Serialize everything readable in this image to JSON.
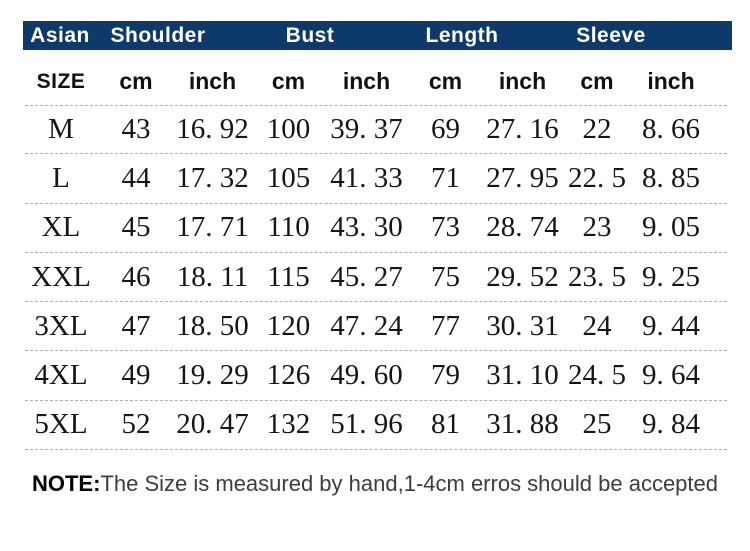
{
  "header": {
    "groups": [
      {
        "label": "Asian"
      },
      {
        "label": "Shoulder"
      },
      {
        "label": "Bust"
      },
      {
        "label": "Length"
      },
      {
        "label": "Sleeve"
      }
    ],
    "size_label": "SIZE",
    "subheaders": [
      "cm",
      "inch",
      "cm",
      "inch",
      "cm",
      "inch",
      "cm",
      "inch"
    ]
  },
  "chart_data": {
    "type": "table",
    "title": "Asian size chart",
    "columns": [
      "SIZE",
      "Shoulder cm",
      "Shoulder inch",
      "Bust cm",
      "Bust inch",
      "Length cm",
      "Length inch",
      "Sleeve cm",
      "Sleeve inch"
    ],
    "rows": [
      [
        "M",
        "43",
        "16. 92",
        "100",
        "39. 37",
        "69",
        "27. 16",
        "22",
        "8. 66"
      ],
      [
        "L",
        "44",
        "17. 32",
        "105",
        "41. 33",
        "71",
        "27. 95",
        "22. 5",
        "8. 85"
      ],
      [
        "XL",
        "45",
        "17. 71",
        "110",
        "43. 30",
        "73",
        "28. 74",
        "23",
        "9. 05"
      ],
      [
        "XXL",
        "46",
        "18. 11",
        "115",
        "45. 27",
        "75",
        "29. 52",
        "23. 5",
        "9. 25"
      ],
      [
        "3XL",
        "47",
        "18. 50",
        "120",
        "47. 24",
        "77",
        "30. 31",
        "24",
        "9. 44"
      ],
      [
        "4XL",
        "49",
        "19. 29",
        "126",
        "49. 60",
        "79",
        "31. 10",
        "24. 5",
        "9. 64"
      ],
      [
        "5XL",
        "52",
        "20. 47",
        "132",
        "51. 96",
        "81",
        "31. 88",
        "25",
        "9. 84"
      ]
    ]
  },
  "note": {
    "prefix": "NOTE:",
    "text": "The Size is measured by hand,1-4cm erros should be accepted"
  },
  "colors": {
    "header_bg": "#0d3a6b",
    "header_text": "#ffffff",
    "divider": "#adadad",
    "body_text": "#161616",
    "note_text": "#3d3d3d"
  }
}
